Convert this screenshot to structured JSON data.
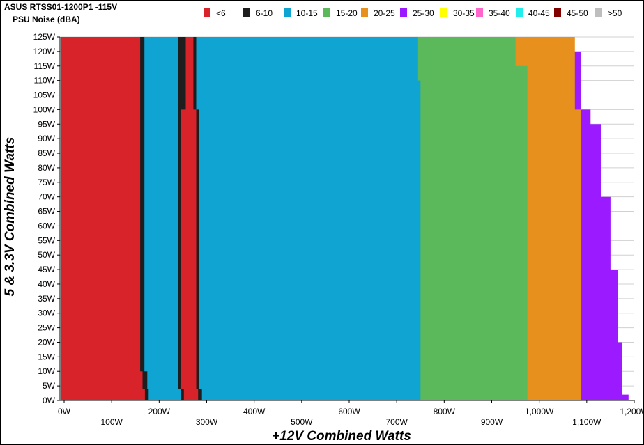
{
  "chart_data": {
    "type": "area",
    "title": "ASUS RTSS01-1200P1 -115V",
    "subtitle": "PSU Noise (dBA)",
    "xlabel": "+12V Combined Watts",
    "ylabel": "5 & 3.3V Combined Watts",
    "xlim": [
      0,
      1200
    ],
    "ylim": [
      0,
      125
    ],
    "x_ticks": [
      "0W",
      "100W",
      "200W",
      "300W",
      "400W",
      "500W",
      "600W",
      "700W",
      "800W",
      "900W",
      "1,000W",
      "1,100W",
      "1,200W"
    ],
    "y_ticks": [
      "0W",
      "5W",
      "10W",
      "15W",
      "20W",
      "25W",
      "30W",
      "35W",
      "40W",
      "45W",
      "50W",
      "55W",
      "60W",
      "65W",
      "70W",
      "75W",
      "80W",
      "85W",
      "90W",
      "95W",
      "100W",
      "105W",
      "110W",
      "115W",
      "120W",
      "125W"
    ],
    "grid": "horizontal",
    "legend_position": "top",
    "legend": [
      {
        "label": "<6",
        "color": "#d8232a"
      },
      {
        "label": "6-10",
        "color": "#1e1e1e"
      },
      {
        "label": "10-15",
        "color": "#0fa4d2"
      },
      {
        "label": "15-20",
        "color": "#5bb95b"
      },
      {
        "label": "20-25",
        "color": "#e8901e"
      },
      {
        "label": "25-30",
        "color": "#9b1aff"
      },
      {
        "label": "30-35",
        "color": "#ffff00"
      },
      {
        "label": "35-40",
        "color": "#ff66cc"
      },
      {
        "label": "40-45",
        "color": "#22eeee"
      },
      {
        "label": "45-50",
        "color": "#800000"
      },
      {
        "label": ">50",
        "color": "#bebebe"
      }
    ],
    "series": [
      {
        "name": "<6",
        "color": "#d8232a",
        "y": [
          0,
          4,
          10,
          125
        ],
        "x_end": [
          170,
          165,
          160,
          150
        ],
        "extra_region": {
          "y": [
            0,
            4,
            100,
            125
          ],
          "x_start": [
            252,
            246,
            256,
            256
          ],
          "x_end": [
            282,
            278,
            272,
            266
          ]
        }
      },
      {
        "name": "6-10",
        "color": "#1e1e1e",
        "y": [
          0,
          4,
          10,
          125
        ],
        "x_end": [
          178,
          175,
          169,
          155
        ],
        "extra_region": {
          "y": [
            0,
            4,
            100,
            125
          ],
          "x_start": [
            246,
            240,
            240,
            240
          ],
          "x_end": [
            290,
            284,
            278,
            272
          ]
        }
      },
      {
        "name": "10-15",
        "color": "#0fa4d2",
        "y": [
          0,
          110,
          125
        ],
        "x_end": [
          750,
          745,
          728
        ]
      },
      {
        "name": "15-20",
        "color": "#5bb95b",
        "y": [
          0,
          75,
          115,
          125
        ],
        "x_end": [
          975,
          975,
          950,
          935
        ]
      },
      {
        "name": "20-25",
        "color": "#e8901e",
        "y": [
          0,
          100,
          125
        ],
        "x_end": [
          1088,
          1075,
          1063
        ]
      },
      {
        "name": "25-30",
        "color": "#9b1aff",
        "y": [
          0,
          2,
          20,
          45,
          70,
          95,
          100,
          120
        ],
        "x_end": [
          1188,
          1175,
          1165,
          1150,
          1130,
          1108,
          1088,
          1088
        ]
      }
    ]
  }
}
